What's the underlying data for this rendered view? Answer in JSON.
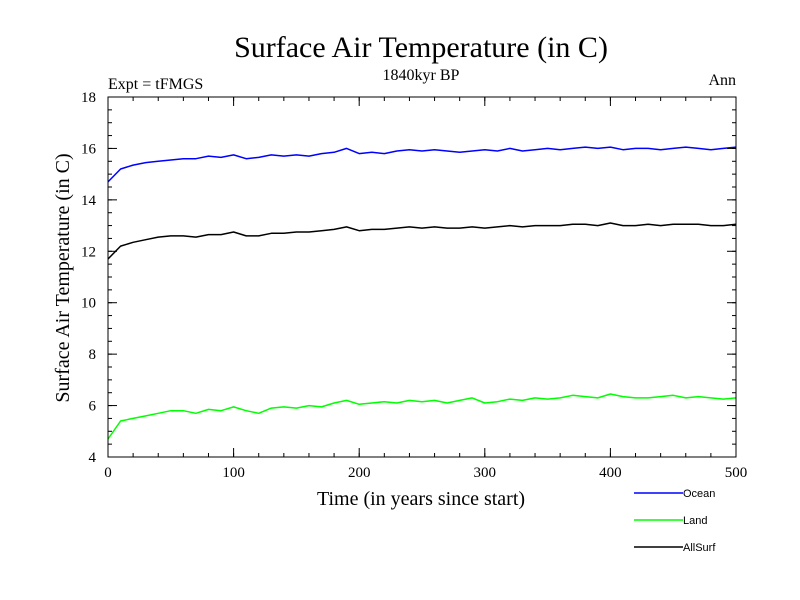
{
  "chart_data": {
    "type": "line",
    "title": "Surface Air Temperature (in C)",
    "subtitle": "1840kyr BP",
    "left_label": "Expt = tFMGS",
    "right_label": "Ann",
    "xlabel": "Time (in years since start)",
    "ylabel": "Surface Air Temperature (in C)",
    "xlim": [
      0,
      500
    ],
    "ylim": [
      4,
      18
    ],
    "x_ticks": [
      0,
      100,
      200,
      300,
      400,
      500
    ],
    "x_tick_labels": [
      "0",
      "100",
      "200",
      "300",
      "400",
      "500"
    ],
    "y_ticks": [
      4,
      6,
      8,
      10,
      12,
      14,
      16,
      18
    ],
    "y_tick_labels": [
      "4",
      "6",
      "8",
      "10",
      "12",
      "14",
      "16",
      "18"
    ],
    "legend_position": "bottom-right, below plot",
    "series": [
      {
        "name": "Ocean",
        "color": "#0000ff",
        "x": [
          0,
          10,
          20,
          30,
          40,
          50,
          60,
          70,
          80,
          90,
          100,
          110,
          120,
          130,
          140,
          150,
          160,
          170,
          180,
          190,
          200,
          210,
          220,
          230,
          240,
          250,
          260,
          270,
          280,
          290,
          300,
          310,
          320,
          330,
          340,
          350,
          360,
          370,
          380,
          390,
          400,
          410,
          420,
          430,
          440,
          450,
          460,
          470,
          480,
          490,
          500
        ],
        "values": [
          14.7,
          15.2,
          15.35,
          15.45,
          15.5,
          15.55,
          15.6,
          15.6,
          15.7,
          15.65,
          15.75,
          15.6,
          15.65,
          15.75,
          15.7,
          15.75,
          15.7,
          15.8,
          15.85,
          16.0,
          15.8,
          15.85,
          15.8,
          15.9,
          15.95,
          15.9,
          15.95,
          15.9,
          15.85,
          15.9,
          15.95,
          15.9,
          16.0,
          15.9,
          15.95,
          16.0,
          15.95,
          16.0,
          16.05,
          16.0,
          16.05,
          15.95,
          16.0,
          16.0,
          15.95,
          16.0,
          16.05,
          16.0,
          15.95,
          16.0,
          16.05
        ]
      },
      {
        "name": "Land",
        "color": "#00ff00",
        "x": [
          0,
          10,
          20,
          30,
          40,
          50,
          60,
          70,
          80,
          90,
          100,
          110,
          120,
          130,
          140,
          150,
          160,
          170,
          180,
          190,
          200,
          210,
          220,
          230,
          240,
          250,
          260,
          270,
          280,
          290,
          300,
          310,
          320,
          330,
          340,
          350,
          360,
          370,
          380,
          390,
          400,
          410,
          420,
          430,
          440,
          450,
          460,
          470,
          480,
          490,
          500
        ],
        "values": [
          4.7,
          5.4,
          5.5,
          5.6,
          5.7,
          5.8,
          5.8,
          5.7,
          5.85,
          5.8,
          5.95,
          5.8,
          5.7,
          5.9,
          5.95,
          5.9,
          6.0,
          5.95,
          6.1,
          6.2,
          6.05,
          6.1,
          6.15,
          6.1,
          6.2,
          6.15,
          6.2,
          6.1,
          6.2,
          6.3,
          6.1,
          6.15,
          6.25,
          6.2,
          6.3,
          6.25,
          6.3,
          6.4,
          6.35,
          6.3,
          6.45,
          6.35,
          6.3,
          6.3,
          6.35,
          6.4,
          6.3,
          6.35,
          6.3,
          6.25,
          6.3
        ]
      },
      {
        "name": "AllSurf",
        "color": "#000000",
        "x": [
          0,
          10,
          20,
          30,
          40,
          50,
          60,
          70,
          80,
          90,
          100,
          110,
          120,
          130,
          140,
          150,
          160,
          170,
          180,
          190,
          200,
          210,
          220,
          230,
          240,
          250,
          260,
          270,
          280,
          290,
          300,
          310,
          320,
          330,
          340,
          350,
          360,
          370,
          380,
          390,
          400,
          410,
          420,
          430,
          440,
          450,
          460,
          470,
          480,
          490,
          500
        ],
        "values": [
          11.7,
          12.2,
          12.35,
          12.45,
          12.55,
          12.6,
          12.6,
          12.55,
          12.65,
          12.65,
          12.75,
          12.6,
          12.6,
          12.7,
          12.7,
          12.75,
          12.75,
          12.8,
          12.85,
          12.95,
          12.8,
          12.85,
          12.85,
          12.9,
          12.95,
          12.9,
          12.95,
          12.9,
          12.9,
          12.95,
          12.9,
          12.95,
          13.0,
          12.95,
          13.0,
          13.0,
          13.0,
          13.05,
          13.05,
          13.0,
          13.1,
          13.0,
          13.0,
          13.05,
          13.0,
          13.05,
          13.05,
          13.05,
          13.0,
          13.0,
          13.05
        ]
      }
    ]
  }
}
